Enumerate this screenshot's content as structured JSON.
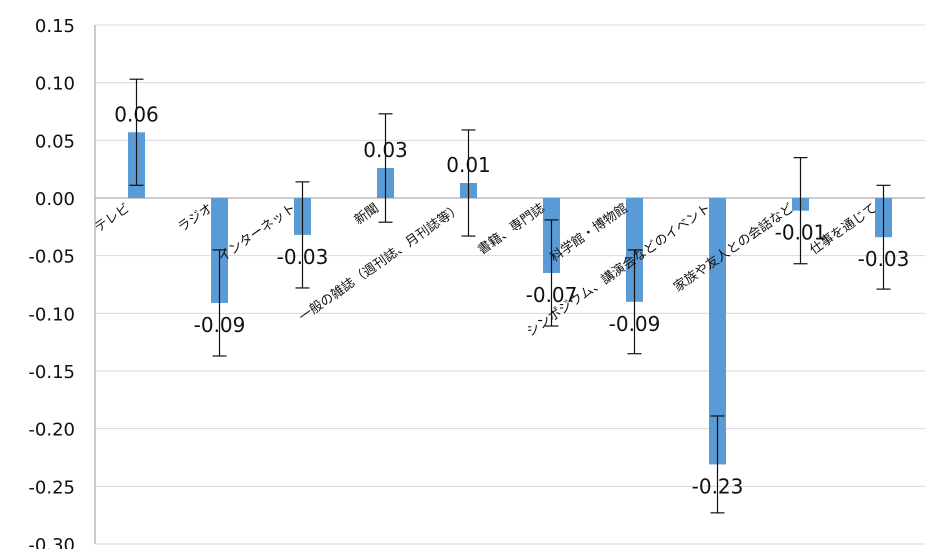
{
  "chart_data": {
    "type": "bar",
    "title": "",
    "xlabel": "",
    "ylabel": "",
    "ylim": [
      -0.3,
      0.15
    ],
    "yticks": [
      "0.15",
      "0.10",
      "0.05",
      "0.00",
      "-0.05",
      "-0.10",
      "-0.15",
      "-0.20",
      "-0.25",
      "-0.30"
    ],
    "grid": true,
    "bar_color": "#5b9bd5",
    "categories": [
      "テレビ",
      "ラジオ",
      "インターネット",
      "新聞",
      "一般の雑誌（週刊誌、月刊誌等）",
      "書籍、専門誌",
      "科学館・博物館",
      "シンポジウム、講演会などのイベント",
      "家族や友人との会話など",
      "仕事を通じて"
    ],
    "values": [
      0.057,
      -0.091,
      -0.032,
      0.026,
      0.013,
      -0.065,
      -0.09,
      -0.231,
      -0.011,
      -0.034
    ],
    "errors": [
      0.046,
      0.046,
      0.046,
      0.047,
      0.046,
      0.046,
      0.045,
      0.042,
      0.046,
      0.045
    ],
    "data_labels": [
      "0.06",
      "-0.09",
      "-0.03",
      "0.03",
      "0.01",
      "-0.07",
      "-0.09",
      "-0.23",
      "-0.01",
      "-0.03"
    ]
  }
}
